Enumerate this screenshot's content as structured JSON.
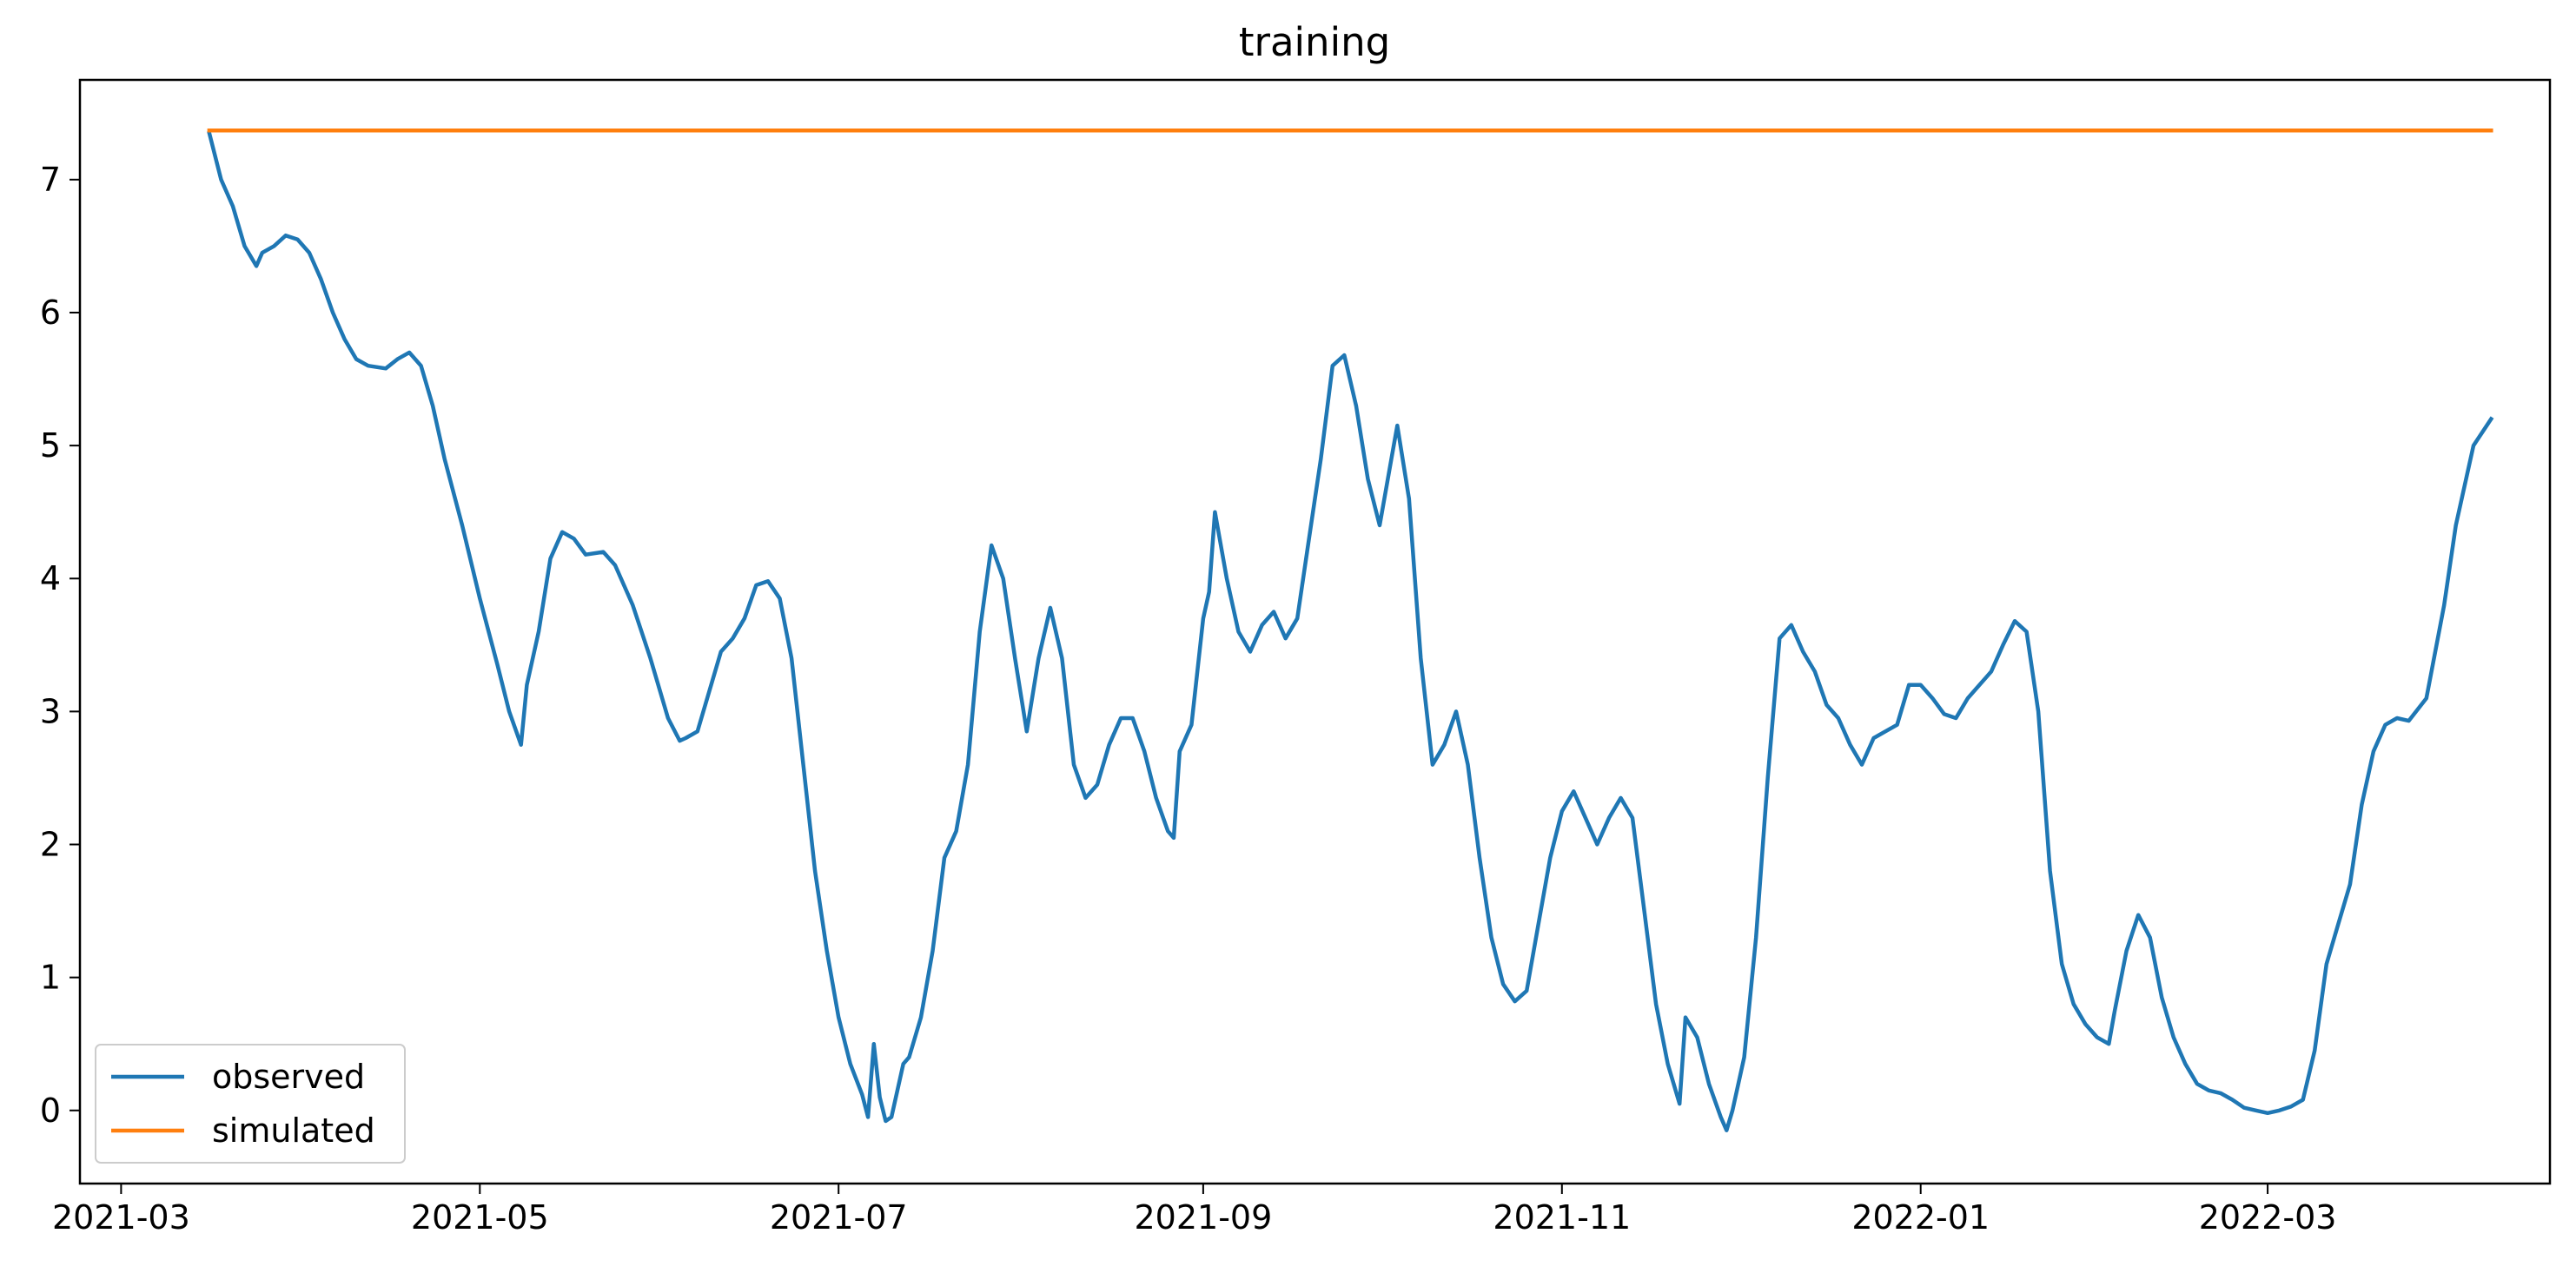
{
  "chart_data": {
    "type": "line",
    "title": "training",
    "xlabel": "",
    "ylabel": "",
    "x_axis_type": "date",
    "xlim": [
      "2021-02-22",
      "2022-04-18"
    ],
    "ylim": [
      -0.55,
      7.75
    ],
    "x_ticks": [
      "2021-03-01",
      "2021-05-01",
      "2021-07-01",
      "2021-09-01",
      "2021-11-01",
      "2022-01-01",
      "2022-03-01"
    ],
    "x_tick_labels": [
      "2021-03",
      "2021-05",
      "2021-07",
      "2021-09",
      "2021-11",
      "2022-01",
      "2022-03"
    ],
    "y_ticks": [
      0,
      1,
      2,
      3,
      4,
      5,
      6,
      7
    ],
    "y_tick_labels": [
      "0",
      "1",
      "2",
      "3",
      "4",
      "5",
      "6",
      "7"
    ],
    "grid": false,
    "legend": {
      "position": "lower-left"
    },
    "series": [
      {
        "name": "observed",
        "color": "#1f77b4",
        "points": [
          [
            "2021-03-16",
            7.35
          ],
          [
            "2021-03-18",
            7.0
          ],
          [
            "2021-03-20",
            6.8
          ],
          [
            "2021-03-22",
            6.5
          ],
          [
            "2021-03-24",
            6.35
          ],
          [
            "2021-03-25",
            6.45
          ],
          [
            "2021-03-27",
            6.5
          ],
          [
            "2021-03-29",
            6.58
          ],
          [
            "2021-03-31",
            6.55
          ],
          [
            "2021-04-02",
            6.45
          ],
          [
            "2021-04-04",
            6.25
          ],
          [
            "2021-04-06",
            6.0
          ],
          [
            "2021-04-08",
            5.8
          ],
          [
            "2021-04-10",
            5.65
          ],
          [
            "2021-04-12",
            5.6
          ],
          [
            "2021-04-15",
            5.58
          ],
          [
            "2021-04-17",
            5.65
          ],
          [
            "2021-04-19",
            5.7
          ],
          [
            "2021-04-21",
            5.6
          ],
          [
            "2021-04-23",
            5.3
          ],
          [
            "2021-04-25",
            4.9
          ],
          [
            "2021-04-28",
            4.4
          ],
          [
            "2021-05-01",
            3.85
          ],
          [
            "2021-05-04",
            3.35
          ],
          [
            "2021-05-06",
            3.0
          ],
          [
            "2021-05-08",
            2.75
          ],
          [
            "2021-05-09",
            3.2
          ],
          [
            "2021-05-11",
            3.6
          ],
          [
            "2021-05-13",
            4.15
          ],
          [
            "2021-05-15",
            4.35
          ],
          [
            "2021-05-17",
            4.3
          ],
          [
            "2021-05-19",
            4.18
          ],
          [
            "2021-05-22",
            4.2
          ],
          [
            "2021-05-24",
            4.1
          ],
          [
            "2021-05-27",
            3.8
          ],
          [
            "2021-05-30",
            3.4
          ],
          [
            "2021-06-02",
            2.95
          ],
          [
            "2021-06-04",
            2.78
          ],
          [
            "2021-06-05",
            2.8
          ],
          [
            "2021-06-07",
            2.85
          ],
          [
            "2021-06-09",
            3.15
          ],
          [
            "2021-06-11",
            3.45
          ],
          [
            "2021-06-13",
            3.55
          ],
          [
            "2021-06-15",
            3.7
          ],
          [
            "2021-06-17",
            3.95
          ],
          [
            "2021-06-19",
            3.98
          ],
          [
            "2021-06-21",
            3.85
          ],
          [
            "2021-06-23",
            3.4
          ],
          [
            "2021-06-25",
            2.6
          ],
          [
            "2021-06-27",
            1.8
          ],
          [
            "2021-06-29",
            1.2
          ],
          [
            "2021-07-01",
            0.7
          ],
          [
            "2021-07-03",
            0.35
          ],
          [
            "2021-07-05",
            0.12
          ],
          [
            "2021-07-06",
            -0.05
          ],
          [
            "2021-07-07",
            0.5
          ],
          [
            "2021-07-08",
            0.1
          ],
          [
            "2021-07-09",
            -0.08
          ],
          [
            "2021-07-10",
            -0.05
          ],
          [
            "2021-07-12",
            0.35
          ],
          [
            "2021-07-13",
            0.4
          ],
          [
            "2021-07-15",
            0.7
          ],
          [
            "2021-07-17",
            1.2
          ],
          [
            "2021-07-19",
            1.9
          ],
          [
            "2021-07-21",
            2.1
          ],
          [
            "2021-07-23",
            2.6
          ],
          [
            "2021-07-25",
            3.6
          ],
          [
            "2021-07-27",
            4.25
          ],
          [
            "2021-07-29",
            4.0
          ],
          [
            "2021-07-31",
            3.4
          ],
          [
            "2021-08-02",
            2.85
          ],
          [
            "2021-08-04",
            3.4
          ],
          [
            "2021-08-06",
            3.78
          ],
          [
            "2021-08-08",
            3.4
          ],
          [
            "2021-08-10",
            2.6
          ],
          [
            "2021-08-12",
            2.35
          ],
          [
            "2021-08-14",
            2.45
          ],
          [
            "2021-08-16",
            2.75
          ],
          [
            "2021-08-18",
            2.95
          ],
          [
            "2021-08-20",
            2.95
          ],
          [
            "2021-08-22",
            2.7
          ],
          [
            "2021-08-24",
            2.35
          ],
          [
            "2021-08-26",
            2.1
          ],
          [
            "2021-08-27",
            2.05
          ],
          [
            "2021-08-28",
            2.7
          ],
          [
            "2021-08-30",
            2.9
          ],
          [
            "2021-09-01",
            3.7
          ],
          [
            "2021-09-02",
            3.9
          ],
          [
            "2021-09-03",
            4.5
          ],
          [
            "2021-09-05",
            4.0
          ],
          [
            "2021-09-07",
            3.6
          ],
          [
            "2021-09-09",
            3.45
          ],
          [
            "2021-09-11",
            3.65
          ],
          [
            "2021-09-13",
            3.75
          ],
          [
            "2021-09-15",
            3.55
          ],
          [
            "2021-09-17",
            3.7
          ],
          [
            "2021-09-19",
            4.3
          ],
          [
            "2021-09-21",
            4.9
          ],
          [
            "2021-09-23",
            5.6
          ],
          [
            "2021-09-25",
            5.68
          ],
          [
            "2021-09-27",
            5.3
          ],
          [
            "2021-09-29",
            4.75
          ],
          [
            "2021-10-01",
            4.4
          ],
          [
            "2021-10-03",
            4.9
          ],
          [
            "2021-10-04",
            5.15
          ],
          [
            "2021-10-06",
            4.6
          ],
          [
            "2021-10-08",
            3.4
          ],
          [
            "2021-10-10",
            2.6
          ],
          [
            "2021-10-12",
            2.75
          ],
          [
            "2021-10-14",
            3.0
          ],
          [
            "2021-10-16",
            2.6
          ],
          [
            "2021-10-18",
            1.9
          ],
          [
            "2021-10-20",
            1.3
          ],
          [
            "2021-10-22",
            0.95
          ],
          [
            "2021-10-24",
            0.82
          ],
          [
            "2021-10-26",
            0.9
          ],
          [
            "2021-10-28",
            1.4
          ],
          [
            "2021-10-30",
            1.9
          ],
          [
            "2021-11-01",
            2.25
          ],
          [
            "2021-11-03",
            2.4
          ],
          [
            "2021-11-05",
            2.2
          ],
          [
            "2021-11-07",
            2.0
          ],
          [
            "2021-11-09",
            2.2
          ],
          [
            "2021-11-11",
            2.35
          ],
          [
            "2021-11-13",
            2.2
          ],
          [
            "2021-11-15",
            1.5
          ],
          [
            "2021-11-17",
            0.8
          ],
          [
            "2021-11-19",
            0.35
          ],
          [
            "2021-11-21",
            0.05
          ],
          [
            "2021-11-22",
            0.7
          ],
          [
            "2021-11-24",
            0.55
          ],
          [
            "2021-11-26",
            0.2
          ],
          [
            "2021-11-28",
            -0.05
          ],
          [
            "2021-11-29",
            -0.15
          ],
          [
            "2021-11-30",
            0.0
          ],
          [
            "2021-12-02",
            0.4
          ],
          [
            "2021-12-04",
            1.3
          ],
          [
            "2021-12-06",
            2.5
          ],
          [
            "2021-12-08",
            3.55
          ],
          [
            "2021-12-10",
            3.65
          ],
          [
            "2021-12-12",
            3.45
          ],
          [
            "2021-12-14",
            3.3
          ],
          [
            "2021-12-16",
            3.05
          ],
          [
            "2021-12-18",
            2.95
          ],
          [
            "2021-12-20",
            2.75
          ],
          [
            "2021-12-22",
            2.6
          ],
          [
            "2021-12-24",
            2.8
          ],
          [
            "2021-12-26",
            2.85
          ],
          [
            "2021-12-28",
            2.9
          ],
          [
            "2021-12-30",
            3.2
          ],
          [
            "2022-01-01",
            3.2
          ],
          [
            "2022-01-03",
            3.1
          ],
          [
            "2022-01-05",
            2.98
          ],
          [
            "2022-01-07",
            2.95
          ],
          [
            "2022-01-09",
            3.1
          ],
          [
            "2022-01-11",
            3.2
          ],
          [
            "2022-01-13",
            3.3
          ],
          [
            "2022-01-15",
            3.5
          ],
          [
            "2022-01-17",
            3.68
          ],
          [
            "2022-01-19",
            3.6
          ],
          [
            "2022-01-21",
            3.0
          ],
          [
            "2022-01-23",
            1.8
          ],
          [
            "2022-01-25",
            1.1
          ],
          [
            "2022-01-27",
            0.8
          ],
          [
            "2022-01-29",
            0.65
          ],
          [
            "2022-01-31",
            0.55
          ],
          [
            "2022-02-02",
            0.5
          ],
          [
            "2022-02-03",
            0.75
          ],
          [
            "2022-02-05",
            1.2
          ],
          [
            "2022-02-07",
            1.47
          ],
          [
            "2022-02-09",
            1.3
          ],
          [
            "2022-02-11",
            0.85
          ],
          [
            "2022-02-13",
            0.55
          ],
          [
            "2022-02-15",
            0.35
          ],
          [
            "2022-02-17",
            0.2
          ],
          [
            "2022-02-19",
            0.15
          ],
          [
            "2022-02-21",
            0.13
          ],
          [
            "2022-02-23",
            0.08
          ],
          [
            "2022-02-25",
            0.02
          ],
          [
            "2022-02-27",
            0.0
          ],
          [
            "2022-03-01",
            -0.02
          ],
          [
            "2022-03-03",
            0.0
          ],
          [
            "2022-03-05",
            0.03
          ],
          [
            "2022-03-07",
            0.08
          ],
          [
            "2022-03-09",
            0.45
          ],
          [
            "2022-03-11",
            1.1
          ],
          [
            "2022-03-13",
            1.4
          ],
          [
            "2022-03-15",
            1.7
          ],
          [
            "2022-03-17",
            2.3
          ],
          [
            "2022-03-19",
            2.7
          ],
          [
            "2022-03-21",
            2.9
          ],
          [
            "2022-03-23",
            2.95
          ],
          [
            "2022-03-25",
            2.93
          ],
          [
            "2022-03-28",
            3.1
          ],
          [
            "2022-03-31",
            3.8
          ],
          [
            "2022-04-02",
            4.4
          ],
          [
            "2022-04-05",
            5.0
          ],
          [
            "2022-04-08",
            5.2
          ]
        ]
      },
      {
        "name": "simulated",
        "color": "#ff7f0e",
        "points": [
          [
            "2021-03-16",
            7.37
          ],
          [
            "2022-04-08",
            7.37
          ]
        ]
      }
    ]
  }
}
